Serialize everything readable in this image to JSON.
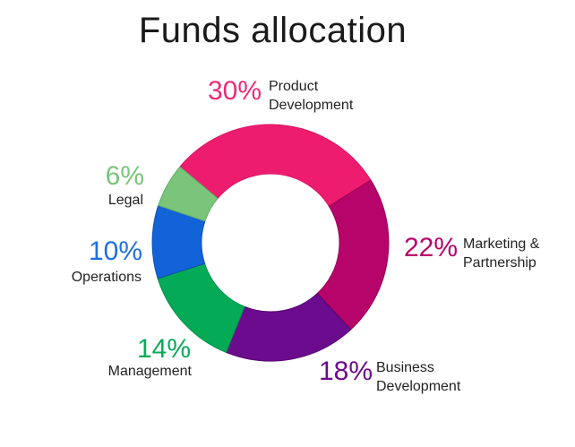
{
  "chart_data": {
    "type": "pie",
    "title": "Funds allocation",
    "slices": [
      {
        "value_label": "30%",
        "value": 30,
        "name_lines": [
          "Product",
          "Development"
        ],
        "color": "#ee1c6e",
        "edge": "#d81762"
      },
      {
        "value_label": "22%",
        "value": 22,
        "name_lines": [
          "Marketing &",
          "Partnership"
        ],
        "color": "#b7046a",
        "edge": "#9a0459"
      },
      {
        "value_label": "18%",
        "value": 18,
        "name_lines": [
          "Business",
          "Development"
        ],
        "color": "#6b0b8d",
        "edge": "#560872"
      },
      {
        "value_label": "14%",
        "value": 14,
        "name_lines": [
          "Management"
        ],
        "color": "#04aa55",
        "edge": "#03924a"
      },
      {
        "value_label": "10%",
        "value": 10,
        "name_lines": [
          "Operations"
        ],
        "color": "#1263d8",
        "edge": "#0e50b2"
      },
      {
        "value_label": "6%",
        "value": 6,
        "name_lines": [
          "Legal"
        ],
        "color": "#7ac47b",
        "edge": "#64ad66"
      }
    ],
    "pct_colors": [
      "#ee2a75",
      "#b7046a",
      "#6b0b8d",
      "#08aa58",
      "#1d6fe0",
      "#7ac47b"
    ]
  }
}
